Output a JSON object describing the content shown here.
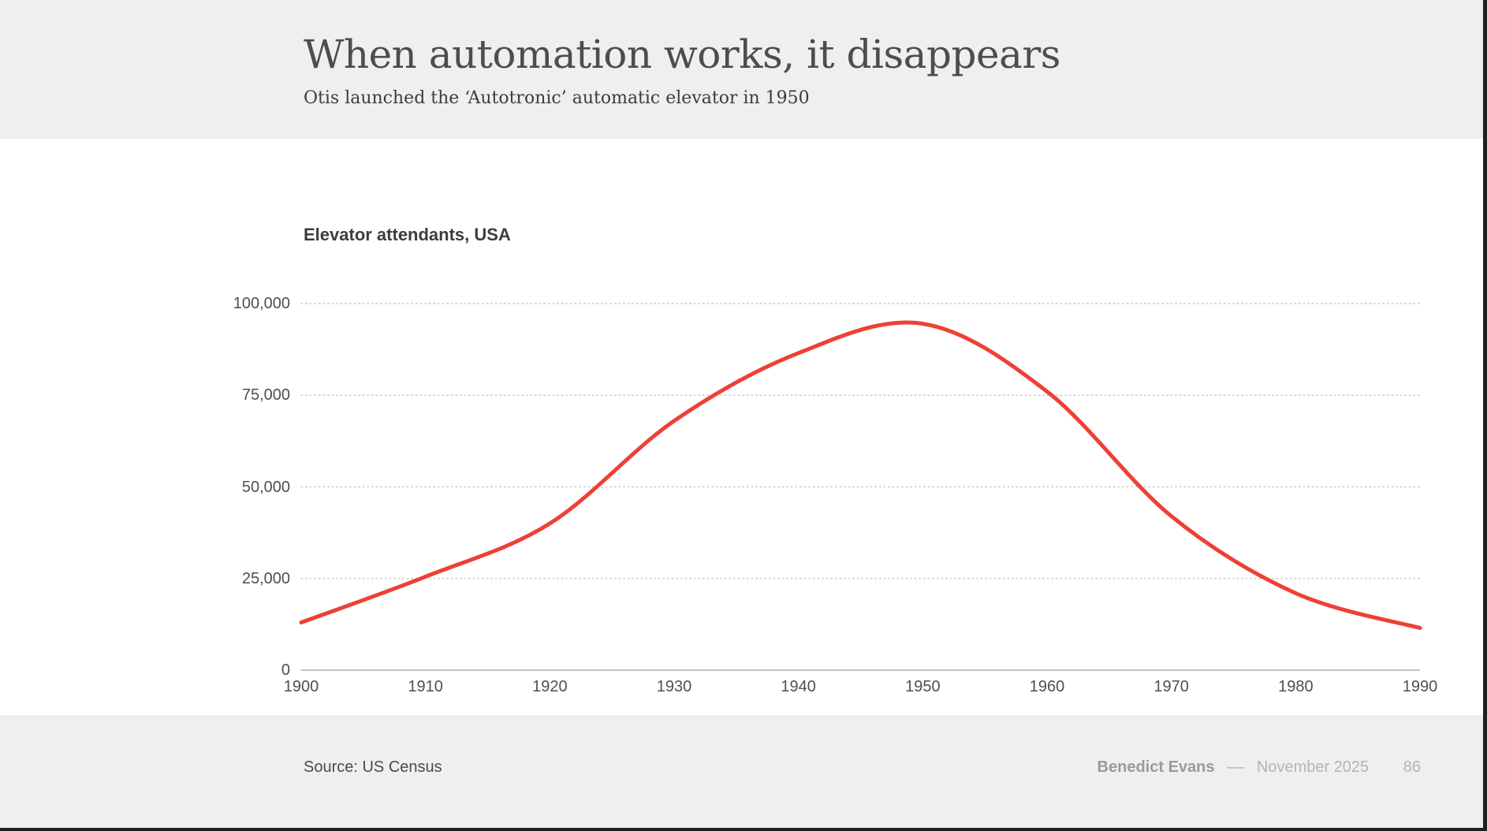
{
  "slide": {
    "title": "When automation works, it disappears",
    "subtitle": "Otis launched the ‘Autotronic’ automatic elevator in 1950"
  },
  "chart_data": {
    "type": "line",
    "title": "Elevator attendants, USA",
    "x": [
      1900,
      1910,
      1920,
      1930,
      1940,
      1950,
      1960,
      1970,
      1980,
      1990
    ],
    "series": [
      {
        "name": "Elevator attendants, USA",
        "values": [
          13000,
          25500,
          40000,
          68000,
          86500,
          94500,
          76000,
          42000,
          21000,
          11500
        ]
      }
    ],
    "xlabel": "",
    "ylabel": "",
    "xlim": [
      1900,
      1990
    ],
    "ylim": [
      0,
      100000
    ],
    "yticks": [
      0,
      25000,
      50000,
      75000,
      100000
    ],
    "ytick_labels": [
      "0",
      "25,000",
      "50,000",
      "75,000",
      "100,000"
    ],
    "xtick_labels": [
      "1900",
      "1910",
      "1920",
      "1930",
      "1940",
      "1950",
      "1960",
      "1970",
      "1980",
      "1990"
    ],
    "grid": "horizontal dotted gridlines, solid baseline at 0",
    "legend": "none",
    "line_color": "#ee4036",
    "gridline_color": "#c9c9c9",
    "baseline_color": "#c2c2c2",
    "smoothing": "spline through decade points, peak at 1950"
  },
  "footer": {
    "source": "Source: US Census",
    "author": "Benedict Evans",
    "separator": "––",
    "date": "November 2025",
    "page_number": "86"
  }
}
